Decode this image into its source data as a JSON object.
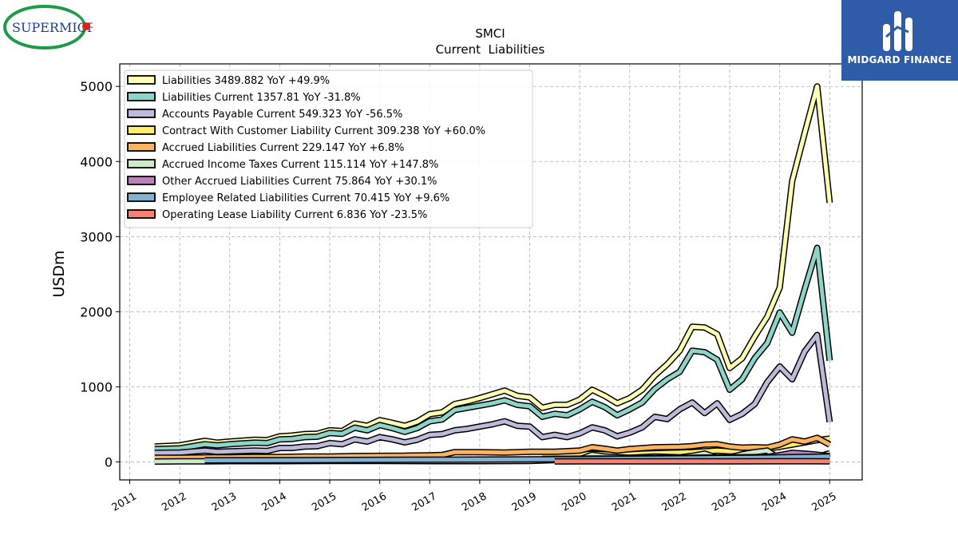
{
  "branding": {
    "company_logo_text": "SUPERMICR",
    "publisher_logo_text": "MIDGARD FINANCE",
    "publisher_color": "#2f5ca8"
  },
  "chart_data": {
    "type": "line",
    "title": "SMCI",
    "subtitle": "Current  Liabilities",
    "ylabel": "USDm",
    "xlabel": "",
    "xlim": [
      2010.8,
      2025.65
    ],
    "ylim": [
      -240,
      5300
    ],
    "yticks": [
      0,
      1000,
      2000,
      3000,
      4000,
      5000
    ],
    "xticks": [
      "2011",
      "2012",
      "2013",
      "2014",
      "2015",
      "2016",
      "2017",
      "2018",
      "2019",
      "2020",
      "2021",
      "2022",
      "2023",
      "2024",
      "2025"
    ],
    "grid": true,
    "legend_position": "top-left",
    "series": [
      {
        "name": "Liabilities",
        "legend": "Liabilities  3489.882 YoY +49.9%",
        "color": "#ffffb3",
        "x": [
          2011.5,
          2012.0,
          2012.5,
          2012.75,
          2013.0,
          2013.5,
          2013.75,
          2014.0,
          2014.25,
          2014.5,
          2014.75,
          2015.0,
          2015.25,
          2015.5,
          2015.75,
          2016.0,
          2016.25,
          2016.5,
          2016.75,
          2017.0,
          2017.25,
          2017.5,
          2017.75,
          2018.0,
          2018.25,
          2018.5,
          2018.75,
          2019.0,
          2019.25,
          2019.5,
          2019.75,
          2020.0,
          2020.25,
          2020.5,
          2020.75,
          2021.0,
          2021.25,
          2021.5,
          2021.75,
          2022.0,
          2022.25,
          2022.5,
          2022.75,
          2023.0,
          2023.25,
          2023.5,
          2023.75,
          2024.0,
          2024.25,
          2024.5,
          2024.75,
          2025.0
        ],
        "y": [
          205,
          220,
          280,
          255,
          270,
          295,
          290,
          340,
          350,
          370,
          375,
          420,
          410,
          510,
          480,
          555,
          520,
          480,
          535,
          635,
          660,
          770,
          805,
          850,
          900,
          950,
          880,
          860,
          720,
          760,
          760,
          830,
          960,
          880,
          780,
          850,
          960,
          1150,
          1300,
          1480,
          1800,
          1790,
          1700,
          1250,
          1380,
          1670,
          1930,
          2320,
          3740,
          4380,
          5000,
          3450
        ]
      },
      {
        "name": "Liabilities Current",
        "legend": "Liabilities Current  1357.81 YoY -31.8%",
        "color": "#8dd3c7",
        "x": [
          2011.5,
          2012.0,
          2012.5,
          2012.75,
          2013.0,
          2013.5,
          2013.75,
          2014.0,
          2014.25,
          2014.5,
          2014.75,
          2015.0,
          2015.25,
          2015.5,
          2015.75,
          2016.0,
          2016.25,
          2016.5,
          2016.75,
          2017.0,
          2017.25,
          2017.5,
          2017.75,
          2018.0,
          2018.25,
          2018.5,
          2018.75,
          2019.0,
          2019.25,
          2019.5,
          2019.75,
          2020.0,
          2020.25,
          2020.5,
          2020.75,
          2021.0,
          2021.25,
          2021.5,
          2021.75,
          2022.0,
          2022.25,
          2022.5,
          2022.75,
          2023.0,
          2023.25,
          2023.5,
          2023.75,
          2024.0,
          2024.25,
          2024.5,
          2024.75,
          2025.0
        ],
        "y": [
          170,
          180,
          235,
          220,
          235,
          255,
          250,
          300,
          305,
          330,
          335,
          385,
          375,
          455,
          420,
          490,
          450,
          400,
          450,
          540,
          565,
          690,
          720,
          750,
          780,
          820,
          760,
          740,
          600,
          640,
          620,
          700,
          800,
          730,
          620,
          700,
          790,
          970,
          1100,
          1200,
          1480,
          1460,
          1360,
          960,
          1100,
          1380,
          1580,
          1990,
          1720,
          2300,
          2850,
          1350
        ]
      },
      {
        "name": "Accounts Payable Current",
        "legend": "Accounts Payable Current  549.323 YoY -56.5%",
        "color": "#bebada",
        "x": [
          2011.5,
          2012.0,
          2012.5,
          2012.75,
          2013.0,
          2013.5,
          2013.75,
          2014.0,
          2014.25,
          2014.5,
          2014.75,
          2015.0,
          2015.25,
          2015.5,
          2015.75,
          2016.0,
          2016.25,
          2016.5,
          2016.75,
          2017.0,
          2017.25,
          2017.5,
          2017.75,
          2018.0,
          2018.25,
          2018.5,
          2018.75,
          2019.0,
          2019.25,
          2019.5,
          2019.75,
          2020.0,
          2020.25,
          2020.5,
          2020.75,
          2021.0,
          2021.25,
          2021.5,
          2021.75,
          2022.0,
          2022.25,
          2022.5,
          2022.75,
          2023.0,
          2023.25,
          2023.5,
          2023.75,
          2024.0,
          2024.25,
          2024.5,
          2024.75,
          2025.0
        ],
        "y": [
          120,
          125,
          150,
          135,
          140,
          150,
          145,
          185,
          185,
          205,
          210,
          250,
          235,
          300,
          270,
          330,
          300,
          260,
          295,
          360,
          370,
          420,
          440,
          470,
          500,
          540,
          480,
          470,
          330,
          360,
          330,
          380,
          460,
          420,
          340,
          390,
          460,
          600,
          570,
          700,
          790,
          650,
          780,
          560,
          640,
          770,
          1060,
          1270,
          1100,
          1470,
          1690,
          530
        ]
      },
      {
        "name": "Contract With Customer Liability Current",
        "legend": "Contract With Customer Liability Current  309.238 YoY +60.0%",
        "color": "#ffed6f",
        "x": [
          2019.25,
          2019.5,
          2019.75,
          2020.0,
          2020.25,
          2020.5,
          2020.75,
          2021.0,
          2021.25,
          2021.5,
          2021.75,
          2022.0,
          2022.25,
          2022.5,
          2022.75,
          2023.0,
          2023.25,
          2023.5,
          2023.75,
          2024.0,
          2024.25,
          2024.5,
          2024.75,
          2025.0
        ],
        "y": [
          70,
          75,
          80,
          90,
          110,
          100,
          95,
          100,
          110,
          115,
          120,
          125,
          130,
          140,
          150,
          140,
          150,
          160,
          175,
          200,
          230,
          260,
          290,
          310
        ]
      },
      {
        "name": "Accrued Liabilities Current",
        "legend": "Accrued Liabilities Current  229.147 YoY +6.8%",
        "color": "#fdb462",
        "x": [
          2011.5,
          2012.0,
          2012.5,
          2013.0,
          2013.5,
          2014.0,
          2014.5,
          2015.0,
          2015.5,
          2016.0,
          2016.5,
          2017.0,
          2017.25,
          2017.5,
          2018.0,
          2018.5,
          2019.0,
          2019.5,
          2020.0,
          2020.25,
          2020.5,
          2020.75,
          2021.0,
          2021.5,
          2022.0,
          2022.25,
          2022.5,
          2022.75,
          2023.0,
          2023.25,
          2023.5,
          2023.75,
          2024.0,
          2024.25,
          2024.5,
          2024.75,
          2025.0
        ],
        "y": [
          55,
          55,
          60,
          60,
          65,
          65,
          70,
          72,
          78,
          80,
          82,
          88,
          92,
          130,
          130,
          125,
          135,
          135,
          150,
          195,
          175,
          150,
          170,
          195,
          200,
          210,
          230,
          235,
          205,
          190,
          195,
          190,
          230,
          300,
          270,
          320,
          230
        ]
      },
      {
        "name": "Accrued Income Taxes Current",
        "legend": "Accrued Income Taxes Current  115.114 YoY +147.8%",
        "color": "#ccebc5",
        "x": [
          2011.5,
          2012.0,
          2012.5,
          2013.0,
          2014.0,
          2015.0,
          2016.0,
          2017.0,
          2018.0,
          2019.0,
          2020.0,
          2020.25,
          2020.5,
          2021.0,
          2021.5,
          2022.0,
          2022.25,
          2022.5,
          2022.75,
          2023.0,
          2023.25,
          2023.5,
          2023.75,
          2024.0,
          2024.25,
          2024.5,
          2024.75,
          2025.0
        ],
        "y": [
          5,
          8,
          8,
          10,
          10,
          12,
          12,
          10,
          10,
          12,
          35,
          95,
          70,
          55,
          70,
          60,
          80,
          110,
          55,
          60,
          100,
          130,
          150,
          40,
          60,
          95,
          65,
          115
        ]
      },
      {
        "name": "Other Accrued Liabilities Current",
        "legend": "Other Accrued Liabilities Current  75.864 YoY +30.1%",
        "color": "#bc80bd",
        "x": [
          2019.25,
          2019.75,
          2020.25,
          2020.75,
          2021.25,
          2021.75,
          2022.25,
          2022.75,
          2023.25,
          2023.75,
          2024.0,
          2024.25,
          2024.5,
          2024.75,
          2025.0
        ],
        "y": [
          40,
          42,
          45,
          45,
          50,
          52,
          55,
          60,
          62,
          65,
          90,
          120,
          110,
          95,
          76
        ]
      },
      {
        "name": "Employee Related Liabilities Current",
        "legend": "Employee Related Liabilities Current  70.415 YoY +9.6%",
        "color": "#80b1d3",
        "x": [
          2012.5,
          2013.5,
          2014.5,
          2015.5,
          2016.5,
          2017.5,
          2018.5,
          2019.5,
          2020.5,
          2021.5,
          2022.5,
          2023.5,
          2024.0,
          2024.5,
          2025.0
        ],
        "y": [
          20,
          22,
          24,
          26,
          28,
          30,
          32,
          35,
          40,
          45,
          50,
          55,
          60,
          65,
          70
        ]
      },
      {
        "name": "Operating Lease Liability Current",
        "legend": "Operating Lease Liability Current  6.836 YoY -23.5%",
        "color": "#fb8072",
        "x": [
          2019.5,
          2020.0,
          2021.0,
          2022.0,
          2023.0,
          2024.0,
          2024.5,
          2025.0
        ],
        "y": [
          6,
          7,
          7,
          8,
          8,
          9,
          9,
          7
        ]
      }
    ]
  }
}
